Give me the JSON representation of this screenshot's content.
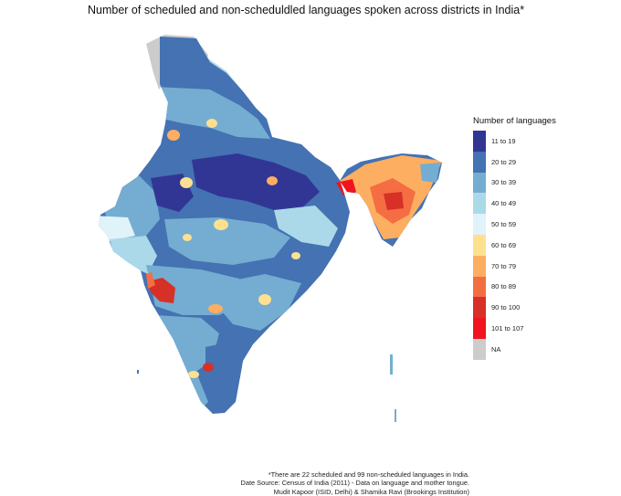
{
  "title": "Number of scheduled and non-scheduldled languages spoken across districts in India*",
  "legend": {
    "title": "Number of languages",
    "items": [
      {
        "label": "11 to 19",
        "color": "#313695"
      },
      {
        "label": "20 to 29",
        "color": "#4472b2"
      },
      {
        "label": "30 to 39",
        "color": "#74add1"
      },
      {
        "label": "40 to 49",
        "color": "#abd9e9"
      },
      {
        "label": "50 to 59",
        "color": "#e0f3f8"
      },
      {
        "label": "60 to 69",
        "color": "#fee090"
      },
      {
        "label": "70 to 79",
        "color": "#fdae61"
      },
      {
        "label": "80 to 89",
        "color": "#f46d43"
      },
      {
        "label": "90 to 100",
        "color": "#d73027"
      },
      {
        "label": "101 to 107",
        "color": "#f0141e"
      },
      {
        "label": "NA",
        "color": "#cccccc"
      }
    ]
  },
  "footnotes": [
    "*There are 22 scheduled and 99 non-scheduled languages in India.",
    "Date Source: Census of India (2011) - Data on language and mother tongue.",
    "Mudit Kapoor (ISID, Delhi) & Shamika Ravi (Brookings Institution)"
  ],
  "map": {
    "country": "India",
    "regions": [
      {
        "region": "Pakistan-administered Kashmir / Aksai Chin",
        "category": "NA"
      },
      {
        "region": "Jammu & Kashmir (east)",
        "category": "40 to 49"
      },
      {
        "region": "North India plains",
        "category": "20 to 29"
      },
      {
        "region": "Gangetic belt core",
        "category": "11 to 19"
      },
      {
        "region": "Rajasthan west",
        "category": "30 to 39"
      },
      {
        "region": "Gujarat",
        "category": "40 to 49"
      },
      {
        "region": "Kutch",
        "category": "50 to 59"
      },
      {
        "region": "Maharashtra",
        "category": "30 to 39"
      },
      {
        "region": "Mumbai",
        "category": "90 to 100"
      },
      {
        "region": "Andhra Pradesh",
        "category": "30 to 39"
      },
      {
        "region": "Karnataka",
        "category": "30 to 39"
      },
      {
        "region": "Bangalore",
        "category": "90 to 100"
      },
      {
        "region": "Tamil Nadu",
        "category": "20 to 29"
      },
      {
        "region": "Kerala",
        "category": "30 to 39"
      },
      {
        "region": "Andaman & Nicobar",
        "category": "30 to 39"
      },
      {
        "region": "Northeast states",
        "category": "80 to 89"
      },
      {
        "region": "Dimapur",
        "category": "101 to 107"
      }
    ]
  }
}
